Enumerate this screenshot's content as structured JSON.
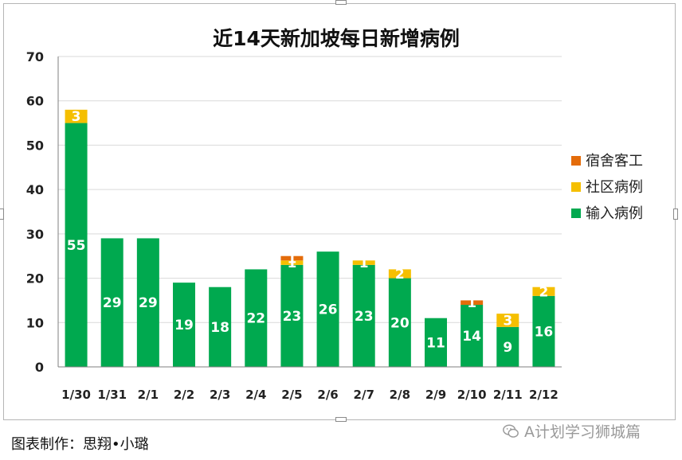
{
  "chart_data": {
    "type": "bar",
    "stacked": true,
    "title": "近14天新加坡每日新增病例",
    "categories": [
      "1/30",
      "1/31",
      "2/1",
      "2/2",
      "2/3",
      "2/4",
      "2/5",
      "2/6",
      "2/7",
      "2/8",
      "2/9",
      "2/10",
      "2/11",
      "2/12"
    ],
    "series": [
      {
        "name": "输入病例",
        "color": "#00a94f",
        "values": [
          55,
          29,
          29,
          19,
          18,
          22,
          23,
          26,
          23,
          20,
          11,
          14,
          9,
          16
        ]
      },
      {
        "name": "社区病例",
        "color": "#f5bf00",
        "values": [
          3,
          0,
          0,
          0,
          0,
          0,
          1,
          0,
          1,
          2,
          0,
          0,
          3,
          2
        ]
      },
      {
        "name": "宿舍客工",
        "color": "#e46c0a",
        "values": [
          0,
          0,
          0,
          0,
          0,
          0,
          1,
          0,
          0,
          0,
          0,
          1,
          0,
          0
        ]
      }
    ],
    "ylim": [
      0,
      70
    ],
    "yticks": [
      0,
      10,
      20,
      30,
      40,
      50,
      60,
      70
    ],
    "grid": true,
    "legend_position": "right"
  },
  "caption": "图表制作：思翔•小璐",
  "watermark": "A计划学习狮城篇",
  "colors": {
    "grid": "#d9d9d9",
    "axis": "#7f7f7f",
    "label_on_bar": "#ffffff"
  }
}
